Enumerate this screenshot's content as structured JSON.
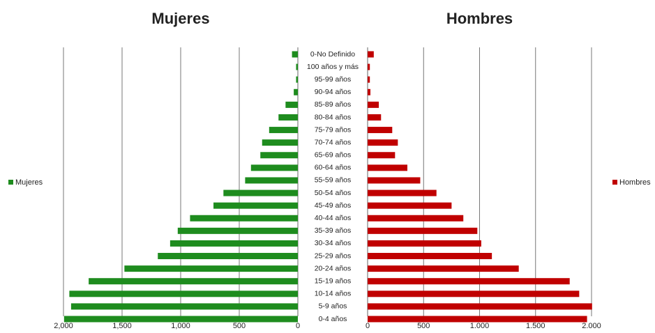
{
  "chart_data": [
    {
      "type": "bar",
      "orientation": "horizontal",
      "x_reversed": true,
      "title": "Mujeres",
      "categories": [
        "0-No Definido",
        "100 años y más",
        "95-99 años",
        "90-94 años",
        "85-89 años",
        "80-84 años",
        "75-79 años",
        "70-74 años",
        "65-69 años",
        "60-64 años",
        "55-59 años",
        "50-54 años",
        "45-49 años",
        "40-44 años",
        "35-39 años",
        "30-34 años",
        "25-29 años",
        "20-24 años",
        "15-19 años",
        "10-14 años",
        "5-9 años",
        "0-4 años"
      ],
      "series": [
        {
          "name": "Mujeres",
          "color": "#1e8c1e",
          "values": [
            50,
            15,
            15,
            35,
            105,
            165,
            245,
            305,
            320,
            400,
            450,
            635,
            720,
            920,
            1025,
            1090,
            1195,
            1480,
            1785,
            1950,
            1935,
            1995
          ]
        }
      ],
      "xlim": [
        0,
        2000
      ],
      "xticks": [
        {
          "value": 2000,
          "label": "2,000"
        },
        {
          "value": 1500,
          "label": "1,500"
        },
        {
          "value": 1000,
          "label": "1,000"
        },
        500,
        0
      ],
      "grid": true,
      "legend": "left"
    },
    {
      "type": "bar",
      "orientation": "horizontal",
      "x_reversed": false,
      "title": "Hombres",
      "series": [
        {
          "name": "Hombres",
          "color": "#c00000",
          "values": [
            55,
            20,
            20,
            25,
            100,
            120,
            220,
            270,
            245,
            355,
            470,
            615,
            750,
            855,
            980,
            1015,
            1110,
            1350,
            1805,
            1890,
            2005,
            1960
          ]
        }
      ],
      "xlim": [
        0,
        2000
      ],
      "xticks": [
        0,
        500,
        {
          "value": 1000,
          "label": "1.000"
        },
        {
          "value": 1500,
          "label": "1.500"
        },
        {
          "value": 2000,
          "label": "2.000"
        }
      ],
      "grid": true,
      "legend": "right"
    }
  ]
}
